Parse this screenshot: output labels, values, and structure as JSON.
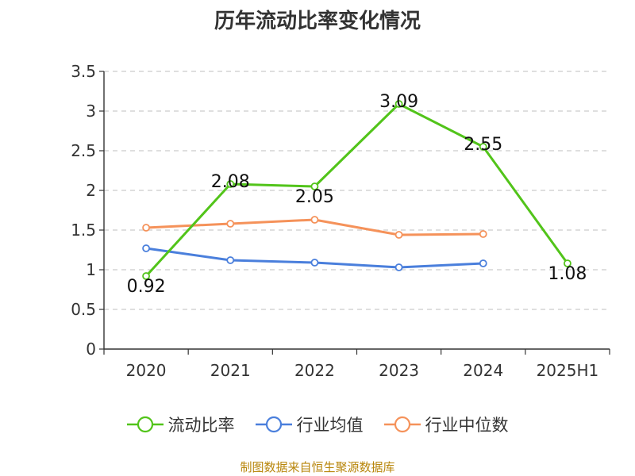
{
  "chart_data": {
    "type": "line",
    "title": "历年流动比率变化情况",
    "categories": [
      "2020",
      "2021",
      "2022",
      "2023",
      "2024",
      "2025H1"
    ],
    "ylim": [
      0,
      3.5
    ],
    "yticks": [
      "0",
      "0.5",
      "1",
      "1.5",
      "2",
      "2.5",
      "3",
      "3.5"
    ],
    "grid": true,
    "legend_position": "bottom",
    "series": [
      {
        "name": "流动比率",
        "color": "#52c41a",
        "values": [
          0.92,
          2.08,
          2.05,
          3.09,
          2.55,
          1.08
        ],
        "labels": [
          "0.92",
          "2.08",
          "2.05",
          "3.09",
          "2.55",
          "1.08"
        ]
      },
      {
        "name": "行业均值",
        "color": "#4a7fdc",
        "values": [
          1.27,
          1.12,
          1.09,
          1.03,
          1.08,
          null
        ]
      },
      {
        "name": "行业中位数",
        "color": "#f5925a",
        "values": [
          1.53,
          1.58,
          1.63,
          1.44,
          1.45,
          null
        ]
      }
    ]
  },
  "source_text": "制图数据来自恒生聚源数据库"
}
